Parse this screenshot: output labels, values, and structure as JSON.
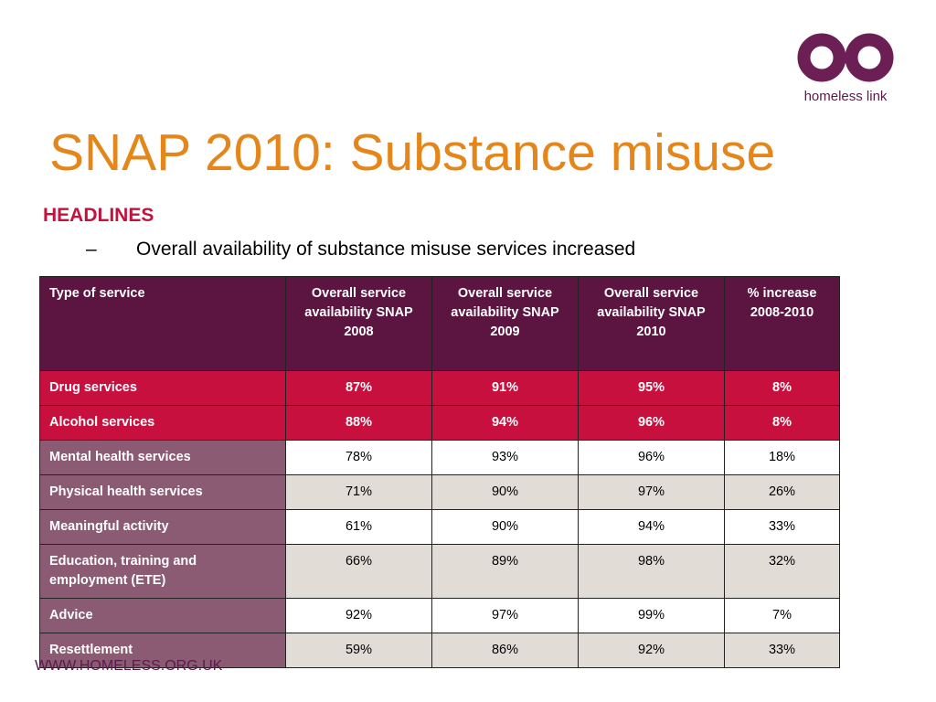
{
  "logo": {
    "text": "homeless link",
    "color": "#6b1f55"
  },
  "title": "SNAP 2010: Substance misuse",
  "headline": "HEADLINES",
  "bullet": {
    "dash": "–",
    "text": "Overall availability of substance misuse services increased"
  },
  "table": {
    "headers": [
      "Type of service",
      "Overall service availability SNAP 2008",
      "Overall service availability SNAP 2009",
      "Overall service availability SNAP 2010",
      "% increase 2008-2010"
    ],
    "rows": [
      {
        "cells": [
          "Drug services",
          "87%",
          "91%",
          "95%",
          "8%"
        ],
        "highlight": true
      },
      {
        "cells": [
          "Alcohol services",
          "88%",
          "94%",
          "96%",
          "8%"
        ],
        "highlight": true
      },
      {
        "cells": [
          "Mental health services",
          "78%",
          "93%",
          "96%",
          "18%"
        ],
        "highlight": false
      },
      {
        "cells": [
          "Physical health services",
          "71%",
          "90%",
          "97%",
          "26%"
        ],
        "highlight": false
      },
      {
        "cells": [
          "Meaningful activity",
          "61%",
          "90%",
          "94%",
          "33%"
        ],
        "highlight": false
      },
      {
        "cells": [
          "Education, training and employment (ETE)",
          "66%",
          "89%",
          "98%",
          "32%"
        ],
        "highlight": false
      },
      {
        "cells": [
          "Advice",
          "92%",
          "97%",
          "99%",
          "7%"
        ],
        "highlight": false
      },
      {
        "cells": [
          "Resettlement",
          "59%",
          "86%",
          "92%",
          "33%"
        ],
        "highlight": false
      }
    ]
  },
  "colors": {
    "title": "#e5861a",
    "headline": "#c2123e",
    "header_bg": "#5c1540",
    "highlight_bg": "#c8103e",
    "label_bg": "#8b5a73",
    "alt_row_bg": "#e2dcd7"
  },
  "footer": "WWW.HOMELESS.ORG.UK"
}
